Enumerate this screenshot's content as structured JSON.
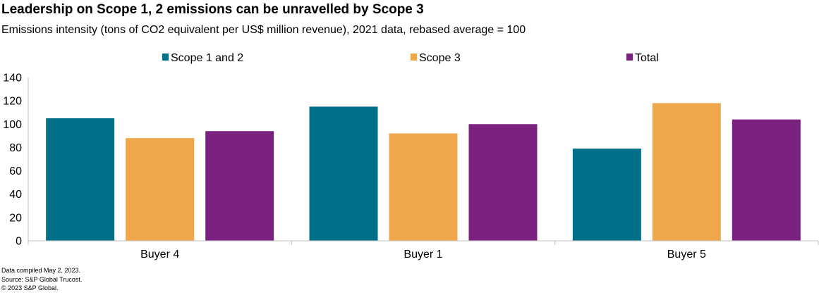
{
  "title": "Leadership on Scope 1, 2 emissions can be unravelled by Scope 3",
  "subtitle": "Emissions intensity (tons of CO2 equivalent per US$ million revenue), 2021 data, rebased average = 100",
  "footer": {
    "line1": "Data compiled May 2, 2023.",
    "line2": "Source: S&P Global Trucost.",
    "line3": "© 2023 S&P Global."
  },
  "colors": {
    "scope12": "#006F88",
    "scope3": "#F0A64A",
    "total": "#7B2281",
    "axis": "#BFBFBF"
  },
  "chart_data": {
    "type": "bar",
    "categories": [
      "Buyer 4",
      "Buyer 1",
      "Buyer 5"
    ],
    "series": [
      {
        "name": "Scope 1 and 2",
        "values": [
          105,
          115,
          79
        ],
        "color": "#006F88"
      },
      {
        "name": "Scope 3",
        "values": [
          88,
          92,
          118
        ],
        "color": "#F0A64A"
      },
      {
        "name": "Total",
        "values": [
          94,
          100,
          104
        ],
        "color": "#7B2281"
      }
    ],
    "ylim": [
      0,
      140
    ],
    "yticks": [
      0,
      20,
      40,
      60,
      80,
      100,
      120,
      140
    ],
    "grid": false,
    "legend": "top-center",
    "xlabel": "",
    "ylabel": ""
  }
}
